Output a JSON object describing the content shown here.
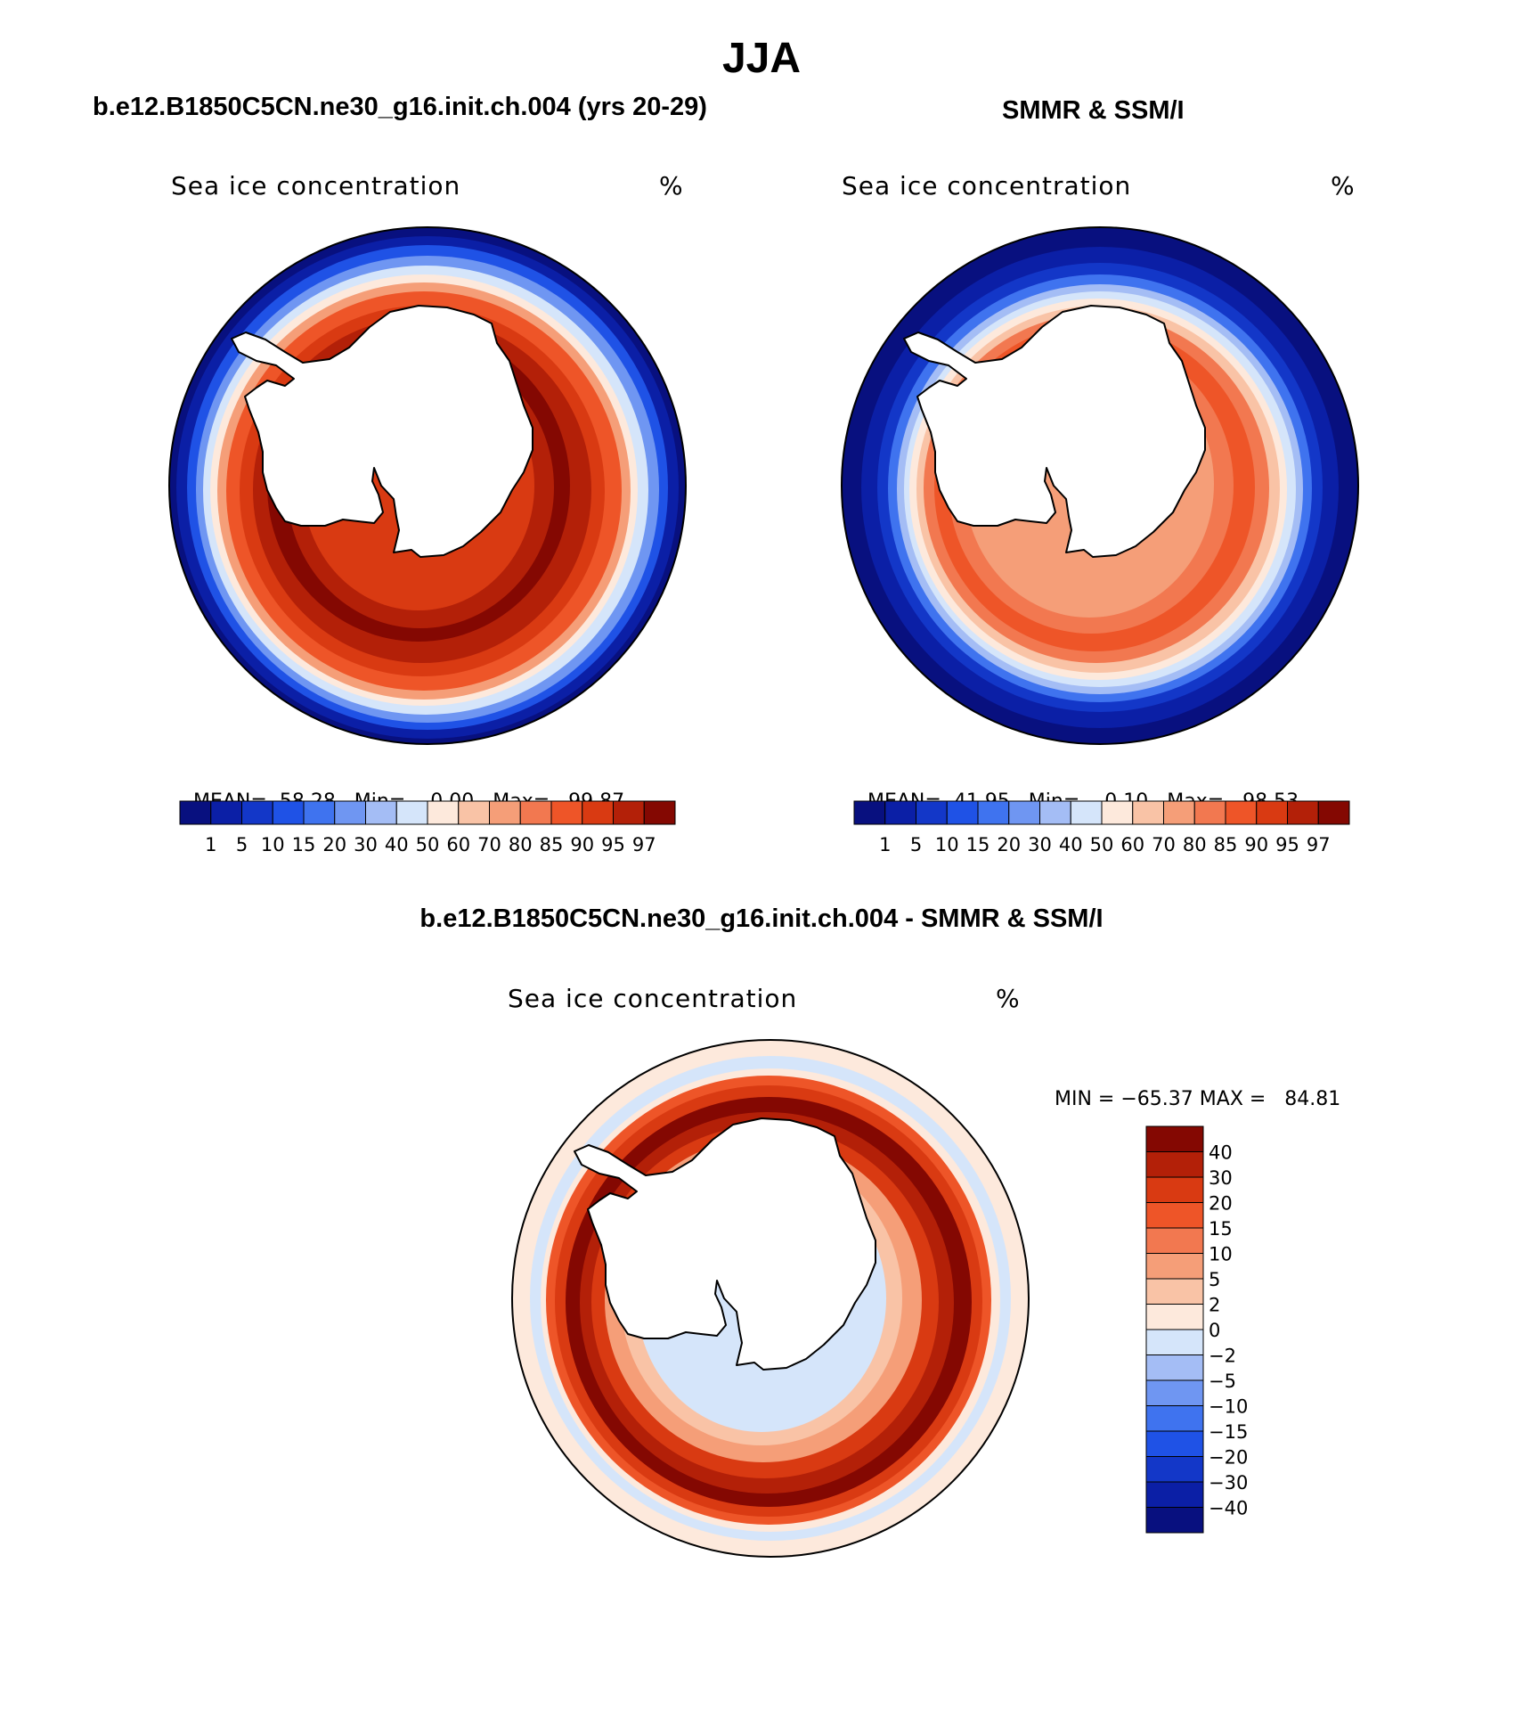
{
  "season_title": "JJA",
  "colors": {
    "seq": [
      "#08107f",
      "#0b1fa6",
      "#1337c8",
      "#1f52e6",
      "#3f73ef",
      "#6f96f2",
      "#a4bdf5",
      "#d5e5fa",
      "#fde9dc",
      "#f9c3a6",
      "#f59e78",
      "#f27850",
      "#ee5528",
      "#d93a12",
      "#b32008",
      "#840802"
    ],
    "diff": [
      "#08107f",
      "#1337c8",
      "#2a5af0",
      "#5a86f2",
      "#a4bdf5",
      "#d5e5fa",
      "#fde9dc",
      "#f9c3a6",
      "#f59e78",
      "#ee5528",
      "#d93a12",
      "#b32008",
      "#840802"
    ]
  },
  "icons": {
    "land": "antarctica-land-mask"
  },
  "chart_data": [
    {
      "type": "heatmap",
      "projection": "south-polar-stereographic",
      "title": "b.e12.B1850C5CN.ne30_g16.init.ch.004 (yrs 20-29)",
      "left_label": "Sea ice concentration",
      "right_label": "%",
      "stats": {
        "mean_label": "MEAN=",
        "mean": "58.28",
        "min_label": "Min=",
        "min": "0.00",
        "max_label": "Max=",
        "max": "99.87"
      },
      "colorbar_levels": [
        "1",
        "5",
        "10",
        "15",
        "20",
        "30",
        "40",
        "50",
        "60",
        "70",
        "80",
        "85",
        "90",
        "95",
        "97"
      ],
      "ice_edge_value": 15
    },
    {
      "type": "heatmap",
      "projection": "south-polar-stereographic",
      "title": "SMMR & SSM/I",
      "left_label": "Sea ice concentration",
      "right_label": "%",
      "stats": {
        "mean_label": "MEAN=",
        "mean": "41.95",
        "min_label": "Min=",
        "min": "0.10",
        "max_label": "Max=",
        "max": "98.53"
      },
      "colorbar_levels": [
        "1",
        "5",
        "10",
        "15",
        "20",
        "30",
        "40",
        "50",
        "60",
        "70",
        "80",
        "85",
        "90",
        "95",
        "97"
      ],
      "ice_edge_value": 15
    },
    {
      "type": "heatmap",
      "projection": "south-polar-stereographic",
      "title": "b.e12.B1850C5CN.ne30_g16.init.ch.004 - SMMR & SSM/I",
      "left_label": "Sea ice concentration",
      "right_label": "%",
      "stats": {
        "min_label": "MIN =",
        "min": "−65.37",
        "max_label": "MAX =",
        "max": "84.81"
      },
      "colorbar_levels": [
        "40",
        "30",
        "20",
        "15",
        "10",
        "5",
        "2",
        "0",
        "−2",
        "−5",
        "−10",
        "−15",
        "−20",
        "−30",
        "−40"
      ]
    }
  ]
}
